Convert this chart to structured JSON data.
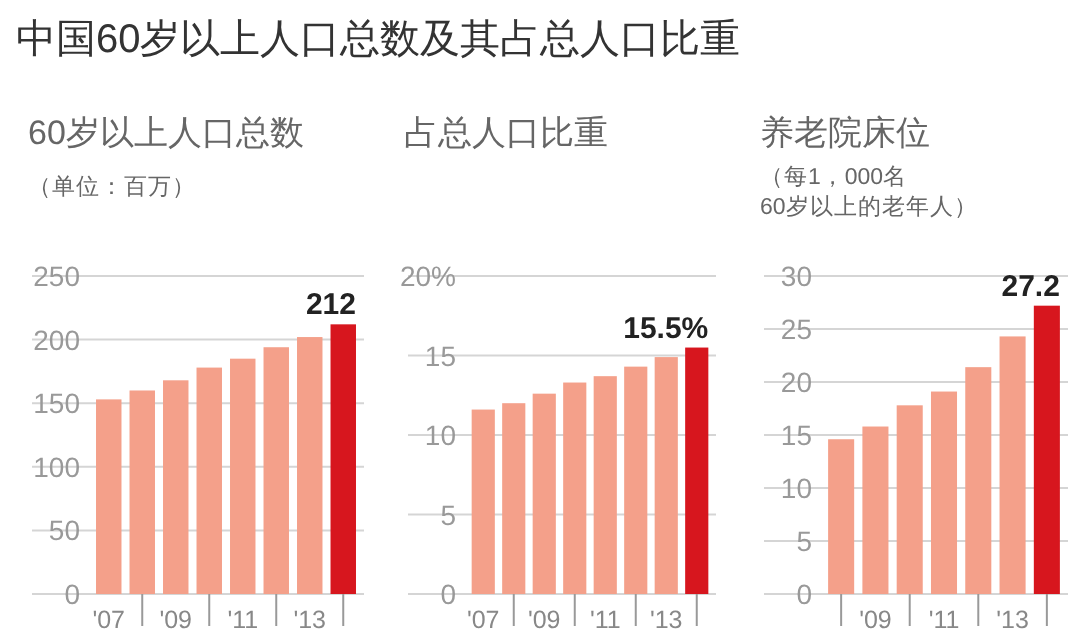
{
  "chart_data": [
    {
      "type": "bar",
      "title": "60岁以上人口总数",
      "subtitle": "（单位：百万）",
      "annotations": [
        "中国60岁以上人口总数及其占总人口比重"
      ],
      "categories": [
        "'07",
        null,
        "'09",
        null,
        "'11",
        null,
        "'13",
        null
      ],
      "values": [
        153,
        160,
        168,
        178,
        185,
        194,
        202,
        212
      ],
      "colors": [
        "#f4a08a",
        "#f4a08a",
        "#f4a08a",
        "#f4a08a",
        "#f4a08a",
        "#f4a08a",
        "#f4a08a",
        "#d7161e"
      ],
      "value_labels": [
        null,
        null,
        null,
        null,
        null,
        null,
        null,
        "212"
      ],
      "ylim": [
        0,
        250
      ],
      "yticks": [
        0,
        50,
        100,
        150,
        200,
        250
      ],
      "grid": "y"
    },
    {
      "type": "bar",
      "title": "占总人口比重",
      "categories": [
        "'07",
        null,
        "'09",
        null,
        "'11",
        null,
        "'13",
        null
      ],
      "values": [
        11.6,
        12.0,
        12.6,
        13.3,
        13.7,
        14.3,
        14.9,
        15.5
      ],
      "colors": [
        "#f4a08a",
        "#f4a08a",
        "#f4a08a",
        "#f4a08a",
        "#f4a08a",
        "#f4a08a",
        "#f4a08a",
        "#d7161e"
      ],
      "value_labels": [
        null,
        null,
        null,
        null,
        null,
        null,
        null,
        "15.5%"
      ],
      "ylim": [
        0,
        20
      ],
      "yticks": [
        0,
        5,
        10,
        15,
        {
          "value": 20,
          "label": "20%"
        }
      ],
      "grid": "y"
    },
    {
      "type": "bar",
      "title": "养老院床位",
      "subtitle": "（每1，000名\n60岁以上的老年人）",
      "categories": [
        null,
        "'09",
        null,
        "'11",
        null,
        "'13",
        null
      ],
      "values": [
        14.6,
        15.8,
        17.8,
        19.1,
        21.4,
        24.3,
        27.2
      ],
      "colors": [
        "#f4a08a",
        "#f4a08a",
        "#f4a08a",
        "#f4a08a",
        "#f4a08a",
        "#f4a08a",
        "#d7161e"
      ],
      "value_labels": [
        null,
        null,
        null,
        null,
        null,
        null,
        "27.2"
      ],
      "ylim": [
        0,
        30
      ],
      "yticks": [
        0,
        5,
        10,
        15,
        20,
        25,
        30
      ],
      "grid": "y"
    }
  ]
}
